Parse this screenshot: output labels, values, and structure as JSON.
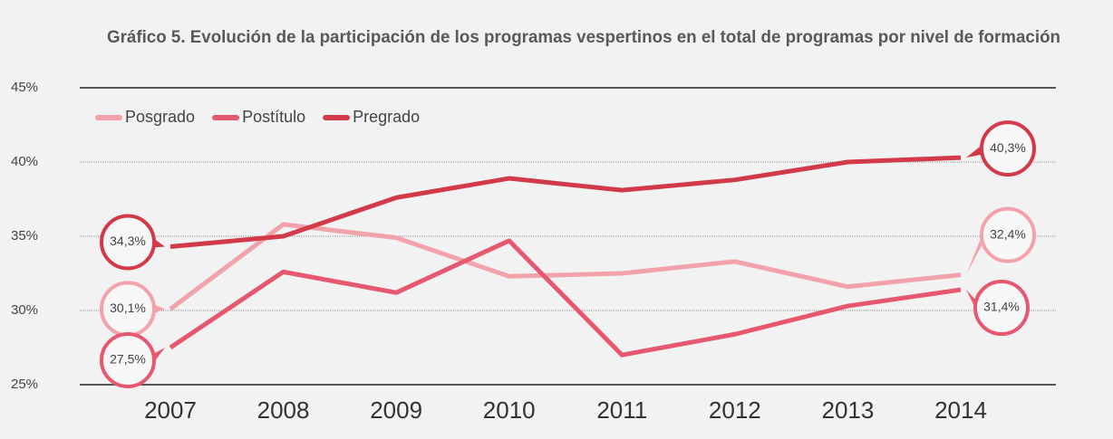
{
  "chart_data": {
    "type": "line",
    "title": "Gráfico 5. Evolución de la participación de los programas vespertinos en el total de programas por nivel de formación",
    "categories": [
      "2007",
      "2008",
      "2009",
      "2010",
      "2011",
      "2012",
      "2013",
      "2014"
    ],
    "series": [
      {
        "name": "Posgrado",
        "color": "#f1a2aa",
        "values": [
          30.1,
          35.8,
          34.9,
          32.3,
          32.5,
          33.3,
          31.6,
          32.4
        ],
        "value_labels": [
          "30,1%",
          null,
          null,
          null,
          null,
          null,
          null,
          "32,4%"
        ]
      },
      {
        "name": "Postítulo",
        "color": "#e6586f",
        "values": [
          27.5,
          32.6,
          31.2,
          34.7,
          27.0,
          28.4,
          30.3,
          31.4
        ],
        "value_labels": [
          "27,5%",
          null,
          null,
          null,
          null,
          null,
          null,
          "31,4%"
        ]
      },
      {
        "name": "Pregrado",
        "color": "#d23a4a",
        "values": [
          34.3,
          35.0,
          37.6,
          38.9,
          38.1,
          38.8,
          40.0,
          40.3
        ],
        "value_labels": [
          "34,3%",
          null,
          null,
          null,
          null,
          null,
          null,
          "40,3%"
        ]
      }
    ],
    "ylim": [
      25,
      45
    ],
    "yticks": [
      {
        "value": 25,
        "label": "25%"
      },
      {
        "value": 30,
        "label": "30%"
      },
      {
        "value": 35,
        "label": "35%"
      },
      {
        "value": 40,
        "label": "40%"
      },
      {
        "value": 45,
        "label": "45%"
      }
    ],
    "grid": true,
    "legend": "top-left"
  }
}
